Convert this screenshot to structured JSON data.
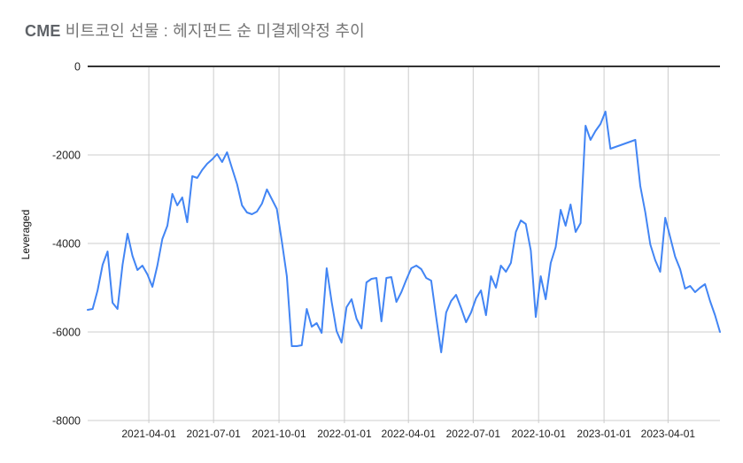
{
  "title": {
    "prefix": "CME",
    "rest": " 비트코인 선물 : 헤지펀드 순 미결제약정 추이"
  },
  "colors": {
    "line": "#4285f4",
    "grid": "#cccccc",
    "axis": "#333333",
    "title_text": "#757575",
    "tick_text": "#222222"
  },
  "chart_data": {
    "type": "line",
    "title": "CME 비트코인 선물 : 헤지펀드 순 미결제약정 추이",
    "xlabel": "",
    "ylabel": "Leveraged",
    "ylim": [
      -8000,
      0
    ],
    "grid": true,
    "legend": "none",
    "y_ticks": [
      0,
      -2000,
      -4000,
      -6000,
      -8000
    ],
    "x_tick_labels": [
      "2021-04-01",
      "2021-07-01",
      "2021-10-01",
      "2022-01-01",
      "2022-04-01",
      "2022-07-01",
      "2022-10-01",
      "2023-01-01",
      "2023-04-01"
    ],
    "x": [
      "2021-01-05",
      "2021-01-12",
      "2021-01-19",
      "2021-01-26",
      "2021-02-02",
      "2021-02-09",
      "2021-02-16",
      "2021-02-23",
      "2021-03-02",
      "2021-03-09",
      "2021-03-16",
      "2021-03-23",
      "2021-03-30",
      "2021-04-06",
      "2021-04-13",
      "2021-04-20",
      "2021-04-27",
      "2021-05-04",
      "2021-05-11",
      "2021-05-18",
      "2021-05-25",
      "2021-06-01",
      "2021-06-08",
      "2021-06-15",
      "2021-06-22",
      "2021-06-29",
      "2021-07-06",
      "2021-07-13",
      "2021-07-20",
      "2021-07-27",
      "2021-08-03",
      "2021-08-10",
      "2021-08-17",
      "2021-08-24",
      "2021-08-31",
      "2021-09-07",
      "2021-09-14",
      "2021-09-21",
      "2021-09-28",
      "2021-10-05",
      "2021-10-12",
      "2021-10-19",
      "2021-10-26",
      "2021-11-02",
      "2021-11-09",
      "2021-11-16",
      "2021-11-23",
      "2021-11-30",
      "2021-12-07",
      "2021-12-14",
      "2021-12-21",
      "2021-12-28",
      "2022-01-04",
      "2022-01-11",
      "2022-01-18",
      "2022-01-25",
      "2022-02-01",
      "2022-02-08",
      "2022-02-15",
      "2022-02-22",
      "2022-03-01",
      "2022-03-08",
      "2022-03-15",
      "2022-03-22",
      "2022-03-29",
      "2022-04-05",
      "2022-04-12",
      "2022-04-19",
      "2022-04-26",
      "2022-05-03",
      "2022-05-10",
      "2022-05-17",
      "2022-05-24",
      "2022-05-31",
      "2022-06-07",
      "2022-06-14",
      "2022-06-21",
      "2022-06-28",
      "2022-07-05",
      "2022-07-12",
      "2022-07-19",
      "2022-07-26",
      "2022-08-02",
      "2022-08-09",
      "2022-08-16",
      "2022-08-23",
      "2022-08-30",
      "2022-09-06",
      "2022-09-13",
      "2022-09-20",
      "2022-09-27",
      "2022-10-04",
      "2022-10-11",
      "2022-10-18",
      "2022-10-25",
      "2022-11-01",
      "2022-11-08",
      "2022-11-15",
      "2022-11-22",
      "2022-11-29",
      "2022-12-06",
      "2022-12-13",
      "2022-12-20",
      "2022-12-27",
      "2023-01-03",
      "2023-01-10",
      "2023-01-17",
      "2023-01-24",
      "2023-01-31",
      "2023-02-07",
      "2023-02-14",
      "2023-02-21",
      "2023-02-28",
      "2023-03-07",
      "2023-03-14",
      "2023-03-21",
      "2023-03-28",
      "2023-04-04",
      "2023-04-11",
      "2023-04-18",
      "2023-04-25",
      "2023-05-02",
      "2023-05-09",
      "2023-05-16",
      "2023-05-23",
      "2023-05-30",
      "2023-06-06",
      "2023-06-13"
    ],
    "values": [
      -5500,
      -5480,
      -5060,
      -4480,
      -4180,
      -5340,
      -5480,
      -4480,
      -3780,
      -4280,
      -4600,
      -4500,
      -4700,
      -4980,
      -4500,
      -3900,
      -3600,
      -2880,
      -3140,
      -2960,
      -3520,
      -2480,
      -2520,
      -2340,
      -2200,
      -2100,
      -1980,
      -2160,
      -1940,
      -2300,
      -2660,
      -3140,
      -3300,
      -3340,
      -3280,
      -3100,
      -2780,
      -3000,
      -3220,
      -3960,
      -4740,
      -6320,
      -6320,
      -6300,
      -5480,
      -5880,
      -5800,
      -6020,
      -4560,
      -5320,
      -5980,
      -6240,
      -5440,
      -5260,
      -5700,
      -5920,
      -4880,
      -4800,
      -4780,
      -5760,
      -4780,
      -4760,
      -5320,
      -5100,
      -4820,
      -4560,
      -4500,
      -4580,
      -4780,
      -4840,
      -5660,
      -6460,
      -5560,
      -5300,
      -5160,
      -5460,
      -5780,
      -5560,
      -5240,
      -5060,
      -5620,
      -4740,
      -5000,
      -4500,
      -4640,
      -4440,
      -3740,
      -3480,
      -3560,
      -4160,
      -5660,
      -4740,
      -5260,
      -4440,
      -4080,
      -3240,
      -3600,
      -3120,
      -3740,
      -3540,
      -1340,
      -1660,
      -1460,
      -1300,
      -1020,
      -1860,
      -1820,
      -1780,
      -1740,
      -1700,
      -1660,
      -2700,
      -3300,
      -4020,
      -4380,
      -4640,
      -3420,
      -3860,
      -4300,
      -4580,
      -5020,
      -4960,
      -5100,
      -5000,
      -4920,
      -5300,
      -5620,
      -6000
    ]
  }
}
